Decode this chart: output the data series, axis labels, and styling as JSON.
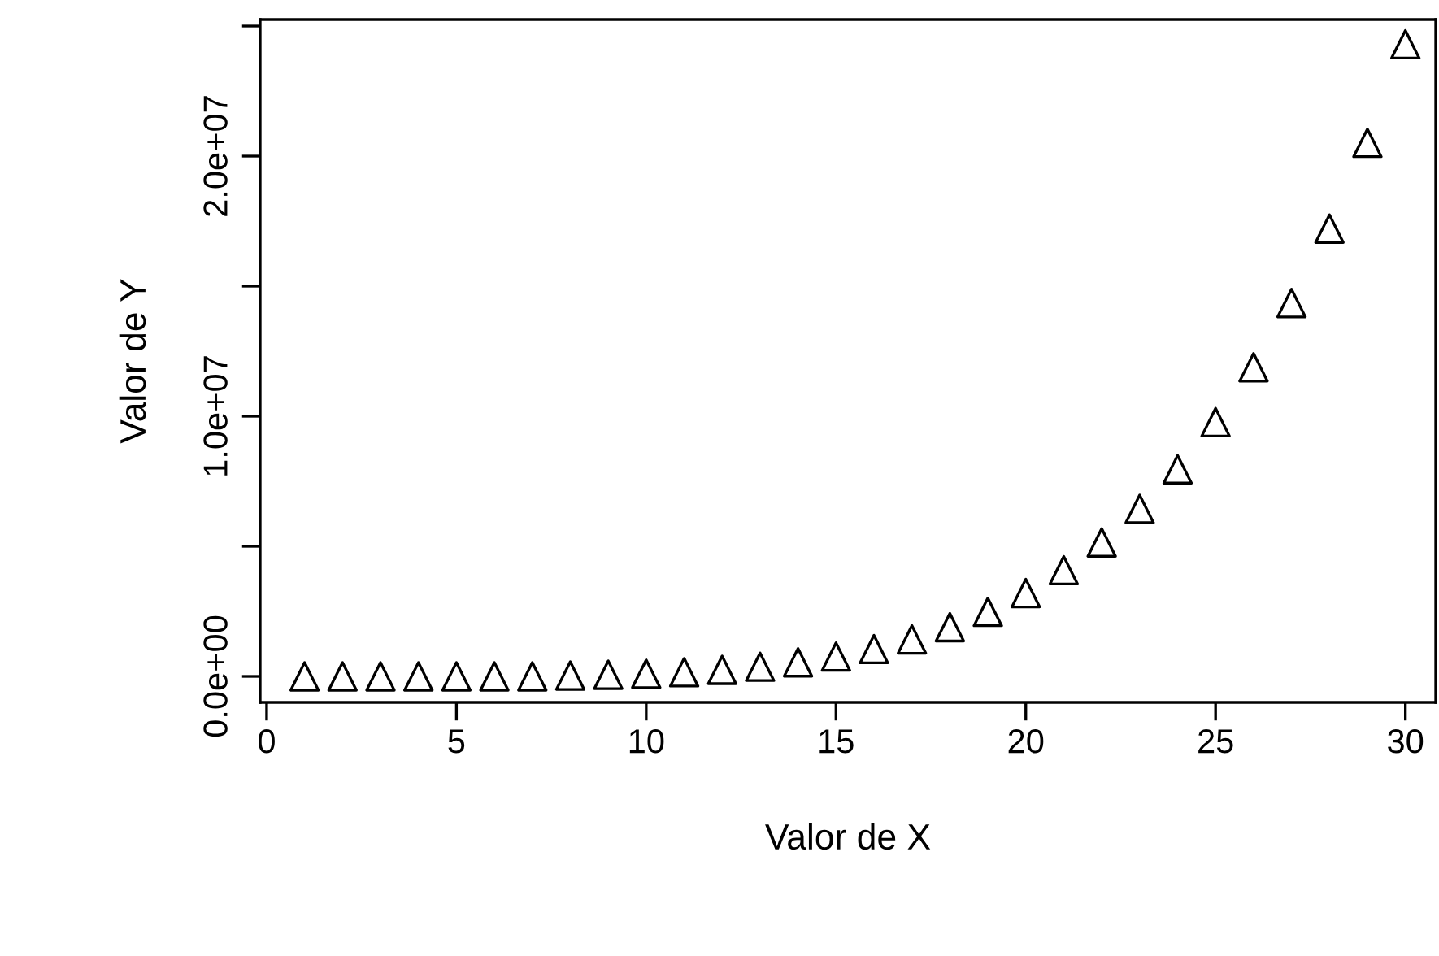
{
  "chart_data": {
    "type": "scatter",
    "xlabel": "Valor de X",
    "ylabel": "Valor de Y",
    "marker": "triangle",
    "grid": false,
    "legend": false,
    "x": [
      1,
      2,
      3,
      4,
      5,
      6,
      7,
      8,
      9,
      10,
      11,
      12,
      13,
      14,
      15,
      16,
      17,
      18,
      19,
      20,
      21,
      22,
      23,
      24,
      25,
      26,
      27,
      28,
      29,
      30
    ],
    "series": [
      {
        "color": "#000000",
        "values": [
          0,
          0,
          0,
          0,
          0,
          0,
          0,
          30000,
          60000,
          100000,
          160000,
          250000,
          370000,
          540000,
          760000,
          1050000,
          1420000,
          1890000,
          2480000,
          3200000,
          4080000,
          5150000,
          6440000,
          7960000,
          9770000,
          11880000,
          14350000,
          17210000,
          20510000,
          24300000
        ]
      }
    ],
    "xlim": [
      -0.17,
      30.8
    ],
    "ylim": [
      -1000000,
      25250000
    ],
    "xticks": [
      0,
      5,
      10,
      15,
      20,
      25,
      30
    ],
    "yticks": [
      {
        "value": 0,
        "label": "0.0e+00"
      },
      {
        "value": 5000000,
        "label": null
      },
      {
        "value": 10000000,
        "label": "1.0e+07"
      },
      {
        "value": 15000000,
        "label": null
      },
      {
        "value": 20000000,
        "label": "2.0e+07"
      },
      {
        "value": 25000000,
        "label": null
      }
    ]
  }
}
